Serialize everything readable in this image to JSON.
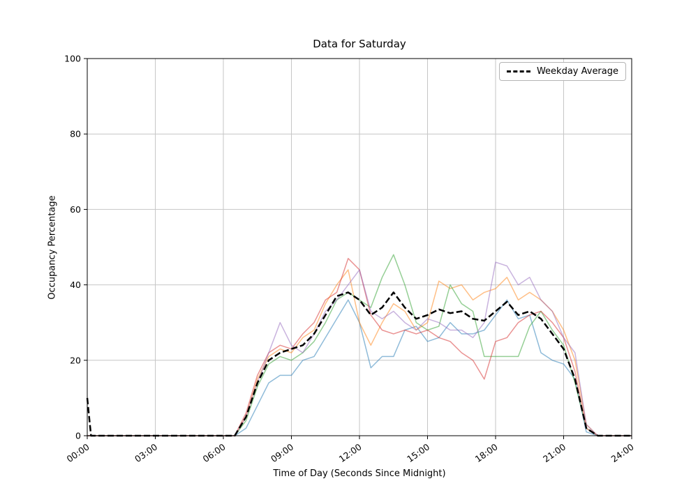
{
  "chart_data": {
    "type": "line",
    "title": "Data for Saturday",
    "xlabel": "Time of Day (Seconds Since Midnight)",
    "ylabel": "Occupancy Percentage",
    "xlim": [
      0,
      86400
    ],
    "ylim": [
      0,
      100
    ],
    "grid": true,
    "legend": {
      "position": "upper right",
      "entries": [
        "Weekday Average"
      ]
    },
    "xticks": {
      "values": [
        0,
        10800,
        21600,
        32400,
        43200,
        54000,
        64800,
        75600,
        86400
      ],
      "labels": [
        "00:00",
        "03:00",
        "06:00",
        "09:00",
        "12:00",
        "15:00",
        "18:00",
        "21:00",
        "24:00"
      ]
    },
    "yticks": [
      0,
      20,
      40,
      60,
      80,
      100
    ],
    "x_seconds": [
      0,
      600,
      1800,
      3600,
      5400,
      7200,
      9000,
      10800,
      12600,
      14400,
      16200,
      18000,
      19800,
      21600,
      23400,
      25200,
      27000,
      28800,
      30600,
      32400,
      34200,
      36000,
      37800,
      39600,
      41400,
      43200,
      45000,
      46800,
      48600,
      50400,
      52200,
      54000,
      55800,
      57600,
      59400,
      61200,
      63000,
      64800,
      66600,
      68400,
      70200,
      72000,
      73800,
      75600,
      77400,
      79200,
      81000,
      82800,
      84600,
      86400
    ],
    "series": [
      {
        "name": "blue",
        "color": "#1f77b4",
        "alpha": 0.5,
        "width": 1.5,
        "values": [
          0,
          0,
          0,
          0,
          0,
          0,
          0,
          0,
          0,
          0,
          0,
          0,
          0,
          0,
          0,
          2,
          8,
          14,
          16,
          16,
          20,
          21,
          26,
          31,
          36,
          30,
          18,
          21,
          21,
          28,
          29,
          25,
          26,
          30,
          27,
          27,
          28,
          32,
          36,
          31,
          32,
          22,
          20,
          19,
          15,
          1,
          0,
          0,
          0,
          0
        ]
      },
      {
        "name": "orange",
        "color": "#ff7f0e",
        "alpha": 0.5,
        "width": 1.5,
        "values": [
          0,
          0,
          0,
          0,
          0,
          0,
          0,
          0,
          0,
          0,
          0,
          0,
          0,
          0,
          0,
          5,
          15,
          21,
          23,
          22,
          26,
          28,
          35,
          40,
          44,
          30,
          24,
          30,
          35,
          33,
          28,
          30,
          41,
          39,
          40,
          36,
          38,
          39,
          42,
          36,
          38,
          36,
          33,
          28,
          20,
          3,
          0,
          0,
          0,
          0
        ]
      },
      {
        "name": "green",
        "color": "#2ca02c",
        "alpha": 0.5,
        "width": 1.5,
        "values": [
          0,
          0,
          0,
          0,
          0,
          0,
          0,
          0,
          0,
          0,
          0,
          0,
          0,
          0,
          0,
          4,
          13,
          19,
          21,
          20,
          22,
          25,
          30,
          36,
          38,
          36,
          34,
          42,
          48,
          40,
          30,
          28,
          29,
          40,
          35,
          33,
          21,
          21,
          21,
          21,
          29,
          33,
          28,
          24,
          14,
          2,
          0,
          0,
          0,
          0
        ]
      },
      {
        "name": "red",
        "color": "#d62728",
        "alpha": 0.5,
        "width": 1.5,
        "values": [
          0,
          0,
          0,
          0,
          0,
          0,
          0,
          0,
          0,
          0,
          0,
          0,
          0,
          0,
          0,
          6,
          16,
          22,
          24,
          23,
          27,
          30,
          36,
          38,
          47,
          44,
          32,
          28,
          27,
          28,
          27,
          28,
          26,
          25,
          22,
          20,
          15,
          25,
          26,
          30,
          32,
          33,
          30,
          26,
          17,
          2,
          0,
          0,
          0,
          0
        ]
      },
      {
        "name": "purple",
        "color": "#9467bd",
        "alpha": 0.5,
        "width": 1.5,
        "values": [
          0,
          0,
          0,
          0,
          0,
          0,
          0,
          0,
          0,
          0,
          0,
          0,
          0,
          0,
          0,
          5,
          14,
          22,
          30,
          24,
          22,
          27,
          33,
          36,
          40,
          44,
          33,
          31,
          33,
          30,
          28,
          31,
          30,
          28,
          28,
          26,
          30,
          46,
          45,
          40,
          42,
          36,
          33,
          26,
          22,
          3,
          0,
          0,
          0,
          0
        ]
      },
      {
        "name": "Weekday Average",
        "color": "#000000",
        "alpha": 1,
        "width": 2.5,
        "dashed": true,
        "values": [
          10,
          0,
          0,
          0,
          0,
          0,
          0,
          0,
          0,
          0,
          0,
          0,
          0,
          0,
          0,
          5,
          14,
          20,
          22,
          23,
          24,
          27,
          32,
          37,
          38,
          36,
          32,
          34,
          38,
          34,
          31,
          32,
          33.5,
          32.5,
          33,
          31,
          30.5,
          33,
          35.5,
          32,
          33,
          31,
          27,
          23,
          15,
          2,
          0,
          0,
          0,
          0
        ]
      }
    ]
  }
}
